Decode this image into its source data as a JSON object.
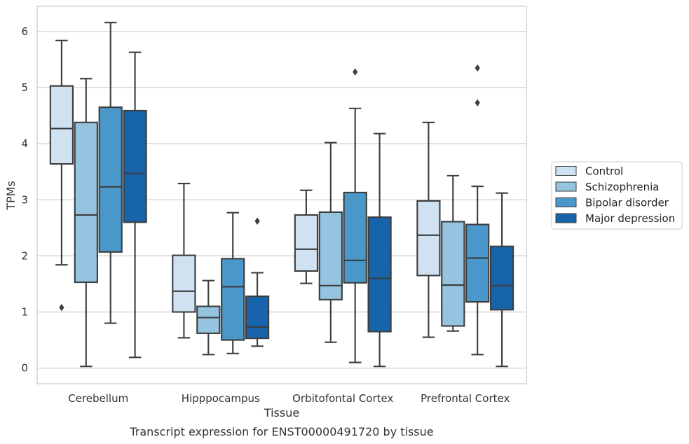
{
  "chart_data": {
    "type": "box",
    "xlabel": "Tissue",
    "ylabel": "TPMs",
    "caption": "Transcript expression for ENST00000491720 by tissue",
    "ylim": [
      -0.28,
      6.45
    ],
    "yticks": [
      0,
      1,
      2,
      3,
      4,
      5,
      6
    ],
    "grid": "horizontal",
    "legend_position": "right",
    "categories": [
      "Cerebellum",
      "Hipppocampus",
      "Orbitofontal Cortex",
      "Prefrontal Cortex"
    ],
    "series": [
      {
        "name": "Control",
        "color": "#d0e1f2",
        "boxes": [
          {
            "whisker_low": 1.84,
            "q1": 3.64,
            "median": 4.27,
            "q3": 5.03,
            "whisker_high": 5.84,
            "outliers": [
              1.08
            ]
          },
          {
            "whisker_low": 0.54,
            "q1": 1.0,
            "median": 1.37,
            "q3": 2.01,
            "whisker_high": 3.29,
            "outliers": []
          },
          {
            "whisker_low": 1.51,
            "q1": 1.73,
            "median": 2.12,
            "q3": 2.73,
            "whisker_high": 3.17,
            "outliers": []
          },
          {
            "whisker_low": 0.55,
            "q1": 1.65,
            "median": 2.37,
            "q3": 2.98,
            "whisker_high": 4.38,
            "outliers": []
          }
        ]
      },
      {
        "name": "Schizophrenia",
        "color": "#94c4df",
        "boxes": [
          {
            "whisker_low": 0.03,
            "q1": 1.53,
            "median": 2.73,
            "q3": 4.38,
            "whisker_high": 5.16,
            "outliers": []
          },
          {
            "whisker_low": 0.24,
            "q1": 0.62,
            "median": 0.9,
            "q3": 1.1,
            "whisker_high": 1.56,
            "outliers": []
          },
          {
            "whisker_low": 0.46,
            "q1": 1.22,
            "median": 1.47,
            "q3": 2.78,
            "whisker_high": 4.02,
            "outliers": []
          },
          {
            "whisker_low": 0.66,
            "q1": 0.75,
            "median": 1.48,
            "q3": 2.61,
            "whisker_high": 3.43,
            "outliers": []
          }
        ]
      },
      {
        "name": "Bipolar disorder",
        "color": "#4a98c9",
        "boxes": [
          {
            "whisker_low": 0.8,
            "q1": 2.07,
            "median": 3.23,
            "q3": 4.65,
            "whisker_high": 6.16,
            "outliers": []
          },
          {
            "whisker_low": 0.26,
            "q1": 0.5,
            "median": 1.45,
            "q3": 1.95,
            "whisker_high": 2.77,
            "outliers": []
          },
          {
            "whisker_low": 0.1,
            "q1": 1.52,
            "median": 1.92,
            "q3": 3.13,
            "whisker_high": 4.63,
            "outliers": [
              5.28
            ]
          },
          {
            "whisker_low": 0.24,
            "q1": 1.18,
            "median": 1.96,
            "q3": 2.56,
            "whisker_high": 3.24,
            "outliers": [
              4.73,
              5.35
            ]
          }
        ]
      },
      {
        "name": "Major depression",
        "color": "#1764ab",
        "boxes": [
          {
            "whisker_low": 0.19,
            "q1": 2.6,
            "median": 3.47,
            "q3": 4.59,
            "whisker_high": 5.63,
            "outliers": []
          },
          {
            "whisker_low": 0.39,
            "q1": 0.53,
            "median": 0.73,
            "q3": 1.28,
            "whisker_high": 1.7,
            "outliers": [
              2.62
            ]
          },
          {
            "whisker_low": 0.03,
            "q1": 0.65,
            "median": 1.6,
            "q3": 2.69,
            "whisker_high": 4.18,
            "outliers": []
          },
          {
            "whisker_low": 0.03,
            "q1": 1.04,
            "median": 1.47,
            "q3": 2.17,
            "whisker_high": 3.12,
            "outliers": []
          }
        ]
      }
    ]
  }
}
